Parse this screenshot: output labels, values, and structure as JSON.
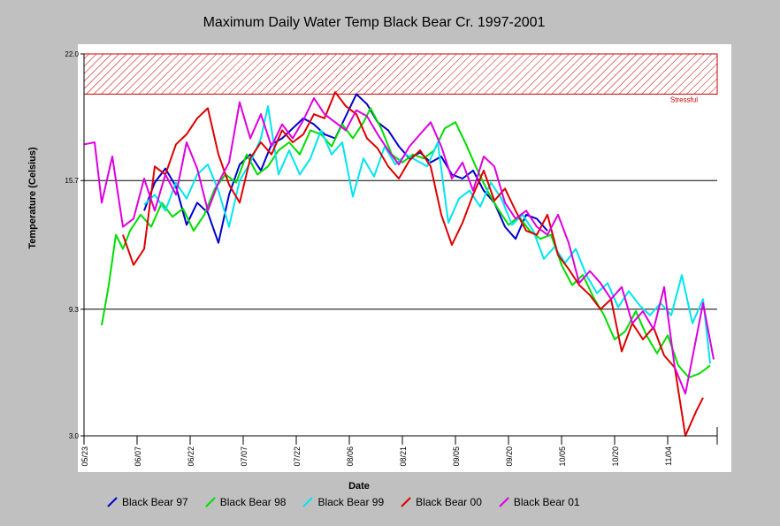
{
  "chart_data": {
    "type": "line",
    "title": "Maximum Daily Water Temp Black Bear Cr. 1997-2001",
    "xlabel": "Date",
    "ylabel": "Temperature (Celsius)",
    "x_domain": [
      "05/23",
      "11/18"
    ],
    "x_ticks": [
      "05/23",
      "06/07",
      "06/22",
      "07/07",
      "07/22",
      "08/06",
      "08/21",
      "09/05",
      "09/20",
      "10/05",
      "10/20",
      "11/04"
    ],
    "ylim": [
      3.0,
      22.0
    ],
    "y_ticks": [
      3.0,
      9.3,
      15.7,
      22.0
    ],
    "gridlines": [
      9.3,
      15.7
    ],
    "threshold_band": {
      "from": 20.0,
      "to": 22.0,
      "label": "Stressful",
      "color": "#cc0000"
    },
    "legend_position": "bottom",
    "series": [
      {
        "name": "Black Bear 97",
        "color": "#0000cc",
        "points": [
          [
            "06/09",
            14.2
          ],
          [
            "06/12",
            15.6
          ],
          [
            "06/15",
            16.3
          ],
          [
            "06/18",
            15.4
          ],
          [
            "06/21",
            13.5
          ],
          [
            "06/24",
            14.6
          ],
          [
            "06/27",
            14.1
          ],
          [
            "06/30",
            12.6
          ],
          [
            "07/03",
            15.0
          ],
          [
            "07/06",
            16.5
          ],
          [
            "07/09",
            17.0
          ],
          [
            "07/12",
            16.2
          ],
          [
            "07/15",
            17.5
          ],
          [
            "07/18",
            17.8
          ],
          [
            "07/21",
            18.3
          ],
          [
            "07/24",
            18.8
          ],
          [
            "07/27",
            18.5
          ],
          [
            "07/30",
            18.0
          ],
          [
            "08/02",
            17.8
          ],
          [
            "08/05",
            18.9
          ],
          [
            "08/08",
            20.0
          ],
          [
            "08/11",
            19.5
          ],
          [
            "08/14",
            18.6
          ],
          [
            "08/17",
            18.2
          ],
          [
            "08/20",
            17.4
          ],
          [
            "08/23",
            16.8
          ],
          [
            "08/26",
            17.1
          ],
          [
            "08/29",
            16.6
          ],
          [
            "09/01",
            16.9
          ],
          [
            "09/04",
            16.0
          ],
          [
            "09/07",
            15.8
          ],
          [
            "09/10",
            16.2
          ],
          [
            "09/13",
            15.2
          ],
          [
            "09/16",
            14.6
          ],
          [
            "09/19",
            13.4
          ],
          [
            "09/22",
            12.8
          ],
          [
            "09/25",
            14.0
          ],
          [
            "09/28",
            13.8
          ],
          [
            "10/01",
            13.2
          ]
        ]
      },
      {
        "name": "Black Bear 98",
        "color": "#00dd00",
        "points": [
          [
            "05/28",
            8.5
          ],
          [
            "05/30",
            10.5
          ],
          [
            "06/01",
            13.0
          ],
          [
            "06/03",
            12.3
          ],
          [
            "06/05",
            13.2
          ],
          [
            "06/08",
            14.0
          ],
          [
            "06/11",
            13.4
          ],
          [
            "06/14",
            14.6
          ],
          [
            "06/17",
            13.9
          ],
          [
            "06/20",
            14.3
          ],
          [
            "06/23",
            13.2
          ],
          [
            "06/26",
            14.0
          ],
          [
            "06/29",
            15.3
          ],
          [
            "07/02",
            16.0
          ],
          [
            "07/05",
            15.6
          ],
          [
            "07/08",
            17.0
          ],
          [
            "07/11",
            16.0
          ],
          [
            "07/14",
            16.4
          ],
          [
            "07/17",
            17.2
          ],
          [
            "07/20",
            17.6
          ],
          [
            "07/23",
            17.0
          ],
          [
            "07/26",
            18.2
          ],
          [
            "07/29",
            18.0
          ],
          [
            "08/01",
            17.4
          ],
          [
            "08/04",
            18.5
          ],
          [
            "08/07",
            17.8
          ],
          [
            "08/10",
            18.6
          ],
          [
            "08/12",
            19.3
          ],
          [
            "08/15",
            18.3
          ],
          [
            "08/18",
            17.0
          ],
          [
            "08/21",
            16.6
          ],
          [
            "08/24",
            17.0
          ],
          [
            "08/27",
            16.8
          ],
          [
            "08/30",
            17.2
          ],
          [
            "09/02",
            18.3
          ],
          [
            "09/05",
            18.6
          ],
          [
            "09/08",
            17.5
          ],
          [
            "09/11",
            16.3
          ],
          [
            "09/14",
            15.2
          ],
          [
            "09/17",
            14.3
          ],
          [
            "09/20",
            13.5
          ],
          [
            "09/23",
            13.9
          ],
          [
            "09/26",
            13.2
          ],
          [
            "09/29",
            12.8
          ],
          [
            "10/02",
            13.0
          ],
          [
            "10/05",
            11.5
          ],
          [
            "10/08",
            10.5
          ],
          [
            "10/11",
            11.0
          ],
          [
            "10/14",
            9.9
          ],
          [
            "10/17",
            9.0
          ],
          [
            "10/20",
            7.8
          ],
          [
            "10/23",
            8.2
          ],
          [
            "10/26",
            9.2
          ],
          [
            "10/29",
            8.0
          ],
          [
            "11/01",
            7.1
          ],
          [
            "11/04",
            8.0
          ],
          [
            "11/07",
            6.5
          ],
          [
            "11/10",
            5.9
          ],
          [
            "11/13",
            6.1
          ],
          [
            "11/16",
            6.5
          ]
        ]
      },
      {
        "name": "Black Bear 99",
        "color": "#00e5ee",
        "points": [
          [
            "06/09",
            14.5
          ],
          [
            "06/12",
            15.0
          ],
          [
            "06/15",
            14.2
          ],
          [
            "06/18",
            15.6
          ],
          [
            "06/21",
            14.8
          ],
          [
            "06/24",
            16.0
          ],
          [
            "06/27",
            16.5
          ],
          [
            "06/30",
            15.2
          ],
          [
            "07/03",
            13.4
          ],
          [
            "07/06",
            15.7
          ],
          [
            "07/09",
            16.6
          ],
          [
            "07/12",
            17.8
          ],
          [
            "07/14",
            19.4
          ],
          [
            "07/17",
            16.0
          ],
          [
            "07/20",
            17.2
          ],
          [
            "07/23",
            16.0
          ],
          [
            "07/26",
            16.8
          ],
          [
            "07/29",
            18.2
          ],
          [
            "08/01",
            17.0
          ],
          [
            "08/04",
            17.6
          ],
          [
            "08/07",
            14.9
          ],
          [
            "08/10",
            16.8
          ],
          [
            "08/13",
            15.9
          ],
          [
            "08/16",
            17.4
          ],
          [
            "08/19",
            16.5
          ],
          [
            "08/22",
            17.0
          ],
          [
            "08/25",
            16.7
          ],
          [
            "08/28",
            16.4
          ],
          [
            "08/31",
            17.6
          ],
          [
            "09/03",
            13.6
          ],
          [
            "09/06",
            14.8
          ],
          [
            "09/09",
            15.2
          ],
          [
            "09/12",
            14.4
          ],
          [
            "09/15",
            15.6
          ],
          [
            "09/18",
            14.8
          ],
          [
            "09/21",
            13.5
          ],
          [
            "09/24",
            14.0
          ],
          [
            "09/27",
            13.2
          ],
          [
            "09/30",
            11.8
          ],
          [
            "10/03",
            12.4
          ],
          [
            "10/06",
            11.6
          ],
          [
            "10/09",
            12.3
          ],
          [
            "10/12",
            11.0
          ],
          [
            "10/15",
            10.1
          ],
          [
            "10/18",
            10.6
          ],
          [
            "10/21",
            9.4
          ],
          [
            "10/24",
            10.2
          ],
          [
            "10/27",
            9.5
          ],
          [
            "10/30",
            9.0
          ],
          [
            "11/02",
            9.6
          ],
          [
            "11/05",
            9.0
          ],
          [
            "11/08",
            11.0
          ],
          [
            "11/11",
            8.6
          ],
          [
            "11/14",
            9.8
          ],
          [
            "11/16",
            6.6
          ]
        ]
      },
      {
        "name": "Black Bear 00",
        "color": "#dd0000",
        "points": [
          [
            "06/03",
            13.0
          ],
          [
            "06/06",
            11.5
          ],
          [
            "06/09",
            12.3
          ],
          [
            "06/12",
            16.4
          ],
          [
            "06/15",
            16.0
          ],
          [
            "06/18",
            17.5
          ],
          [
            "06/21",
            18.0
          ],
          [
            "06/24",
            18.8
          ],
          [
            "06/27",
            19.3
          ],
          [
            "06/30",
            17.0
          ],
          [
            "07/03",
            15.5
          ],
          [
            "07/06",
            14.6
          ],
          [
            "07/09",
            16.8
          ],
          [
            "07/12",
            17.6
          ],
          [
            "07/15",
            17.0
          ],
          [
            "07/18",
            18.2
          ],
          [
            "07/21",
            17.6
          ],
          [
            "07/24",
            18.0
          ],
          [
            "07/27",
            19.0
          ],
          [
            "07/30",
            18.8
          ],
          [
            "08/02",
            20.1
          ],
          [
            "08/05",
            19.4
          ],
          [
            "08/08",
            19.0
          ],
          [
            "08/11",
            17.8
          ],
          [
            "08/14",
            17.3
          ],
          [
            "08/17",
            16.4
          ],
          [
            "08/20",
            15.8
          ],
          [
            "08/23",
            16.7
          ],
          [
            "08/26",
            17.2
          ],
          [
            "08/29",
            16.4
          ],
          [
            "09/01",
            14.0
          ],
          [
            "09/04",
            12.5
          ],
          [
            "09/07",
            13.6
          ],
          [
            "09/10",
            15.0
          ],
          [
            "09/13",
            16.2
          ],
          [
            "09/16",
            14.7
          ],
          [
            "09/19",
            15.3
          ],
          [
            "09/22",
            14.2
          ],
          [
            "09/25",
            13.2
          ],
          [
            "09/28",
            13.0
          ],
          [
            "10/01",
            14.0
          ],
          [
            "10/04",
            12.0
          ],
          [
            "10/07",
            11.3
          ],
          [
            "10/10",
            10.5
          ],
          [
            "10/13",
            10.0
          ],
          [
            "10/16",
            9.3
          ],
          [
            "10/19",
            9.8
          ],
          [
            "10/22",
            7.2
          ],
          [
            "10/25",
            8.6
          ],
          [
            "10/28",
            7.8
          ],
          [
            "10/31",
            8.4
          ],
          [
            "11/03",
            7.0
          ],
          [
            "11/06",
            6.4
          ],
          [
            "11/09",
            3.0
          ],
          [
            "11/12",
            4.2
          ],
          [
            "11/14",
            4.9
          ]
        ]
      },
      {
        "name": "Black Bear 01",
        "color": "#dd00dd",
        "points": [
          [
            "05/23",
            17.5
          ],
          [
            "05/26",
            17.6
          ],
          [
            "05/28",
            14.6
          ],
          [
            "05/31",
            16.9
          ],
          [
            "06/03",
            13.4
          ],
          [
            "06/06",
            13.8
          ],
          [
            "06/09",
            15.8
          ],
          [
            "06/12",
            14.2
          ],
          [
            "06/15",
            16.0
          ],
          [
            "06/18",
            15.0
          ],
          [
            "06/21",
            17.6
          ],
          [
            "06/24",
            16.3
          ],
          [
            "06/27",
            14.2
          ],
          [
            "06/30",
            15.6
          ],
          [
            "07/03",
            16.6
          ],
          [
            "07/06",
            19.6
          ],
          [
            "07/09",
            17.8
          ],
          [
            "07/12",
            19.0
          ],
          [
            "07/15",
            17.4
          ],
          [
            "07/18",
            18.5
          ],
          [
            "07/21",
            17.8
          ],
          [
            "07/24",
            18.7
          ],
          [
            "07/27",
            19.8
          ],
          [
            "07/30",
            19.0
          ],
          [
            "08/02",
            18.6
          ],
          [
            "08/05",
            18.2
          ],
          [
            "08/08",
            19.2
          ],
          [
            "08/11",
            18.9
          ],
          [
            "08/14",
            18.0
          ],
          [
            "08/17",
            17.2
          ],
          [
            "08/20",
            16.5
          ],
          [
            "08/23",
            17.4
          ],
          [
            "08/26",
            18.0
          ],
          [
            "08/29",
            18.6
          ],
          [
            "09/01",
            17.4
          ],
          [
            "09/04",
            15.8
          ],
          [
            "09/07",
            16.6
          ],
          [
            "09/10",
            15.2
          ],
          [
            "09/13",
            16.9
          ],
          [
            "09/16",
            16.4
          ],
          [
            "09/19",
            14.6
          ],
          [
            "09/22",
            13.8
          ],
          [
            "09/25",
            14.2
          ],
          [
            "09/28",
            13.4
          ],
          [
            "10/01",
            13.0
          ],
          [
            "10/04",
            14.0
          ],
          [
            "10/07",
            12.6
          ],
          [
            "10/10",
            10.6
          ],
          [
            "10/13",
            11.2
          ],
          [
            "10/16",
            10.6
          ],
          [
            "10/19",
            9.8
          ],
          [
            "10/22",
            10.4
          ],
          [
            "10/25",
            8.6
          ],
          [
            "10/28",
            9.2
          ],
          [
            "10/31",
            8.3
          ],
          [
            "11/03",
            10.4
          ],
          [
            "11/06",
            6.4
          ],
          [
            "11/09",
            5.1
          ],
          [
            "11/12",
            7.8
          ],
          [
            "11/14",
            9.6
          ],
          [
            "11/17",
            6.8
          ]
        ]
      }
    ]
  }
}
